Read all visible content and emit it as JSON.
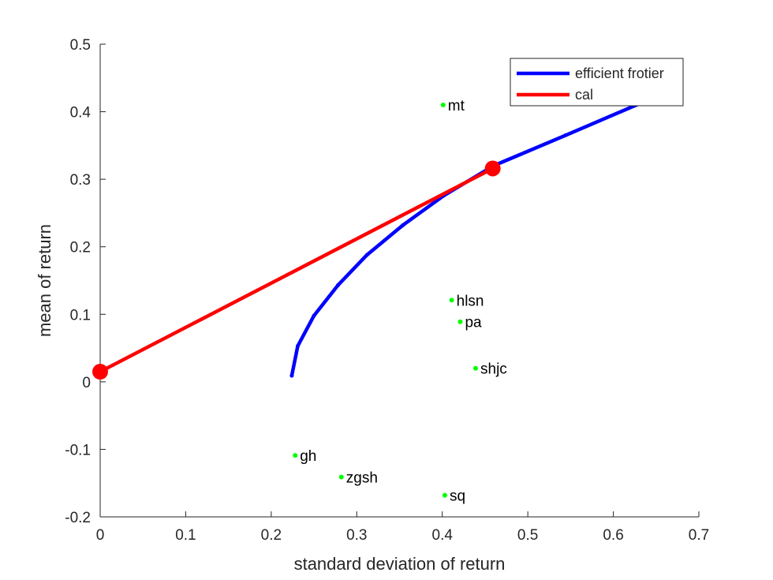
{
  "chart_data": {
    "type": "line",
    "title": "",
    "xlabel": "standard deviation of return",
    "ylabel": "mean of return",
    "xlim": [
      0,
      0.7
    ],
    "ylim": [
      -0.2,
      0.5
    ],
    "xticks": [
      "0",
      "0.1",
      "0.2",
      "0.3",
      "0.4",
      "0.5",
      "0.6",
      "0.7"
    ],
    "yticks": [
      "-0.2",
      "-0.1",
      "0",
      "0.1",
      "0.2",
      "0.3",
      "0.4",
      "0.5"
    ],
    "grid": false,
    "legend_position": "top-right",
    "series": [
      {
        "name": "efficient frotier",
        "color": "#0000ff",
        "points": [
          [
            0.224,
            0.009
          ],
          [
            0.231,
            0.053
          ],
          [
            0.25,
            0.098
          ],
          [
            0.278,
            0.143
          ],
          [
            0.312,
            0.188
          ],
          [
            0.354,
            0.232
          ],
          [
            0.402,
            0.276
          ],
          [
            0.46,
            0.32
          ],
          [
            0.544,
            0.365
          ],
          [
            0.627,
            0.41
          ]
        ]
      },
      {
        "name": "cal",
        "color": "#ff0000",
        "points": [
          [
            0.0,
            0.015
          ],
          [
            0.459,
            0.316
          ]
        ],
        "markers": [
          [
            0.0,
            0.015
          ],
          [
            0.459,
            0.316
          ]
        ]
      }
    ],
    "assets": {
      "color": "#00ff00",
      "points": [
        {
          "label": "mt",
          "x": 0.401,
          "y": 0.41
        },
        {
          "label": "hlsn",
          "x": 0.411,
          "y": 0.121
        },
        {
          "label": "pa",
          "x": 0.421,
          "y": 0.089
        },
        {
          "label": "shjc",
          "x": 0.439,
          "y": 0.02
        },
        {
          "label": "gh",
          "x": 0.228,
          "y": -0.109
        },
        {
          "label": "zgsh",
          "x": 0.282,
          "y": -0.141
        },
        {
          "label": "sq",
          "x": 0.403,
          "y": -0.168
        }
      ]
    }
  }
}
